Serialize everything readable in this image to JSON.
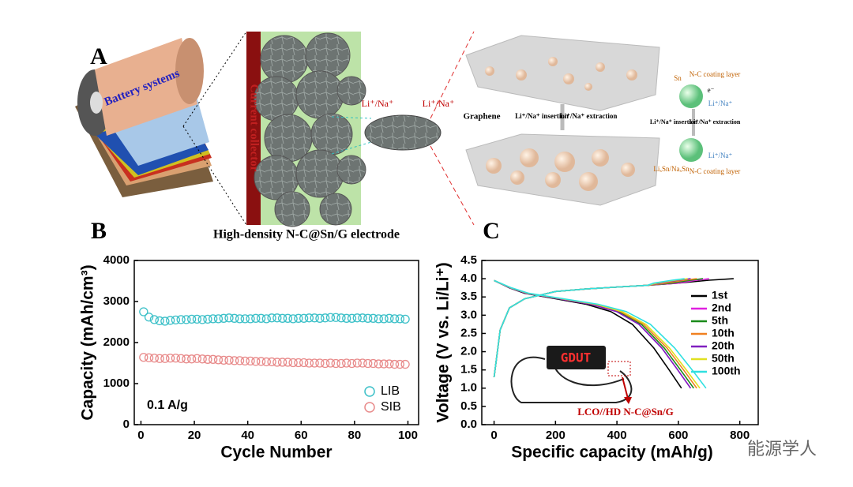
{
  "panel_a": {
    "label": "A",
    "battery": "Battery systems",
    "collector": "Current collector",
    "electrode": "High-density N-C@Sn/G electrode",
    "ion_left": "Li⁺/Na⁺",
    "ion_right": "Li⁺/Na⁺",
    "graphene": "Graphene",
    "insertion": "Li⁺/Na⁺ insertion",
    "extraction": "Li⁺/Na⁺ extraction",
    "insertion_small": "Li⁺/Na⁺ insertion",
    "extraction_small": "Li⁺/Na⁺ extraction",
    "sn": "Sn",
    "coating_top": "N-C coating layer",
    "coating_bottom": "N-C coating layer",
    "ion_sphere_top": "Li⁺/Na⁺",
    "ion_sphere_bottom": "Li⁺/Na⁺",
    "alloy": "LiₓSn/NaₓSn",
    "electron": "e⁻"
  },
  "chart_data": [
    {
      "type": "scatter",
      "panel_label": "B",
      "xlabel": "Cycle Number",
      "ylabel": "Capacity (mAh/cm³)",
      "annotation": "0.1 A/g",
      "x": [
        1,
        3,
        5,
        7,
        9,
        11,
        13,
        15,
        17,
        19,
        21,
        23,
        25,
        27,
        29,
        31,
        33,
        35,
        37,
        39,
        41,
        43,
        45,
        47,
        49,
        51,
        53,
        55,
        57,
        59,
        61,
        63,
        65,
        67,
        69,
        71,
        73,
        75,
        77,
        79,
        81,
        83,
        85,
        87,
        89,
        91,
        93,
        95,
        97,
        99
      ],
      "series": [
        {
          "name": "LIB",
          "color": "#3cc0c8",
          "values": [
            2750,
            2620,
            2560,
            2530,
            2520,
            2540,
            2550,
            2560,
            2560,
            2570,
            2570,
            2560,
            2570,
            2580,
            2580,
            2590,
            2600,
            2590,
            2580,
            2580,
            2580,
            2590,
            2590,
            2580,
            2600,
            2600,
            2590,
            2590,
            2580,
            2590,
            2590,
            2600,
            2600,
            2590,
            2600,
            2610,
            2610,
            2600,
            2590,
            2590,
            2600,
            2600,
            2590,
            2590,
            2580,
            2580,
            2590,
            2580,
            2580,
            2570
          ]
        },
        {
          "name": "SIB",
          "color": "#e88a8a",
          "values": [
            1640,
            1630,
            1620,
            1610,
            1610,
            1620,
            1620,
            1610,
            1600,
            1600,
            1610,
            1600,
            1590,
            1590,
            1580,
            1570,
            1570,
            1560,
            1560,
            1550,
            1550,
            1540,
            1540,
            1530,
            1530,
            1520,
            1520,
            1520,
            1510,
            1510,
            1510,
            1500,
            1500,
            1500,
            1490,
            1500,
            1490,
            1490,
            1500,
            1490,
            1500,
            1500,
            1490,
            1490,
            1480,
            1480,
            1480,
            1470,
            1470,
            1470
          ]
        }
      ],
      "xlim": [
        -2.5,
        104
      ],
      "ylim": [
        0,
        4000
      ],
      "xticks": [
        0,
        20,
        40,
        60,
        80,
        100
      ],
      "yticks": [
        0,
        1000,
        2000,
        3000,
        4000
      ],
      "legend": "lower right"
    },
    {
      "type": "line",
      "panel_label": "C",
      "xlabel": "Specific capacity (mAh/g)",
      "ylabel": "Voltage (V vs. Li/Li⁺)",
      "inset_label": "LCO//HD N-C@Sn/G",
      "inset_display": "GDUT",
      "watermark": "能源学人",
      "series": [
        {
          "name": "1st",
          "color": "#000000",
          "x": [
            0,
            20,
            50,
            100,
            200,
            300,
            400,
            500,
            600,
            700,
            780,
            null,
            0,
            50,
            100,
            200,
            300,
            380,
            450,
            520,
            570,
            610
          ],
          "values": [
            1.3,
            2.6,
            3.2,
            3.45,
            3.65,
            3.72,
            3.77,
            3.82,
            3.88,
            3.96,
            4.0,
            null,
            3.95,
            3.75,
            3.6,
            3.45,
            3.3,
            3.1,
            2.75,
            2.1,
            1.5,
            1.0
          ]
        },
        {
          "name": "2nd",
          "color": "#e020e0",
          "x": [
            0,
            20,
            50,
            100,
            200,
            300,
            400,
            500,
            600,
            660,
            700,
            null,
            0,
            52,
            105,
            210,
            315,
            399,
            472,
            546,
            598,
            640
          ],
          "values": [
            1.3,
            2.6,
            3.2,
            3.45,
            3.65,
            3.72,
            3.77,
            3.82,
            3.88,
            3.96,
            4.0,
            null,
            3.95,
            3.75,
            3.6,
            3.45,
            3.3,
            3.1,
            2.75,
            2.1,
            1.5,
            1.0
          ]
        },
        {
          "name": "5th",
          "color": "#1a8a1a",
          "x": [
            0,
            20,
            50,
            100,
            200,
            300,
            400,
            500,
            580,
            640,
            680,
            null,
            0,
            53,
            107,
            213,
            320,
            405,
            480,
            554,
            607,
            650
          ],
          "values": [
            1.3,
            2.6,
            3.2,
            3.45,
            3.65,
            3.72,
            3.77,
            3.82,
            3.88,
            3.96,
            4.0,
            null,
            3.95,
            3.75,
            3.6,
            3.45,
            3.3,
            3.1,
            2.75,
            2.1,
            1.5,
            1.0
          ]
        },
        {
          "name": "10th",
          "color": "#f08020",
          "x": [
            0,
            20,
            50,
            100,
            200,
            300,
            400,
            500,
            560,
            620,
            660,
            null,
            0,
            54,
            108,
            216,
            325,
            411,
            487,
            563,
            617,
            660
          ],
          "values": [
            1.3,
            2.6,
            3.2,
            3.45,
            3.65,
            3.72,
            3.77,
            3.82,
            3.88,
            3.96,
            4.0,
            null,
            3.95,
            3.75,
            3.6,
            3.45,
            3.3,
            3.1,
            2.75,
            2.1,
            1.5,
            1.0
          ]
        },
        {
          "name": "20th",
          "color": "#8020c0",
          "x": [
            0,
            20,
            50,
            100,
            200,
            300,
            400,
            500,
            540,
            600,
            640,
            null,
            0,
            52,
            105,
            210,
            315,
            399,
            472,
            546,
            598,
            640
          ],
          "values": [
            1.3,
            2.6,
            3.2,
            3.45,
            3.65,
            3.72,
            3.77,
            3.82,
            3.88,
            3.96,
            4.0,
            null,
            3.95,
            3.75,
            3.6,
            3.45,
            3.3,
            3.1,
            2.75,
            2.1,
            1.5,
            1.0
          ]
        },
        {
          "name": "50th",
          "color": "#e0e020",
          "x": [
            0,
            20,
            50,
            100,
            200,
            300,
            400,
            500,
            530,
            590,
            630,
            null,
            0,
            55,
            110,
            220,
            330,
            417,
            494,
            571,
            626,
            670
          ],
          "values": [
            1.3,
            2.6,
            3.2,
            3.45,
            3.65,
            3.72,
            3.77,
            3.82,
            3.88,
            3.96,
            4.0,
            null,
            3.95,
            3.75,
            3.6,
            3.45,
            3.3,
            3.1,
            2.75,
            2.1,
            1.5,
            1.0
          ]
        },
        {
          "name": "100th",
          "color": "#30e0e0",
          "x": [
            0,
            20,
            50,
            100,
            200,
            300,
            400,
            500,
            520,
            580,
            620,
            null,
            0,
            57,
            113,
            226,
            339,
            430,
            509,
            588,
            645,
            690
          ],
          "values": [
            1.3,
            2.6,
            3.2,
            3.45,
            3.65,
            3.72,
            3.77,
            3.82,
            3.88,
            3.96,
            4.0,
            null,
            3.95,
            3.75,
            3.6,
            3.45,
            3.3,
            3.1,
            2.75,
            2.1,
            1.5,
            1.0
          ]
        }
      ],
      "xlim": [
        -40,
        860
      ],
      "ylim": [
        0,
        4.5
      ],
      "xticks": [
        0,
        200,
        400,
        600,
        800
      ],
      "yticks": [
        {
          "value": 0,
          "label": "0.0"
        },
        0.5,
        {
          "value": 1,
          "label": "1.0"
        },
        1.5,
        {
          "value": 2,
          "label": "2.0"
        },
        2.5,
        {
          "value": 3,
          "label": "3.0"
        },
        3.5,
        {
          "value": 4,
          "label": "4.0"
        },
        4.5
      ],
      "legend": "right"
    }
  ]
}
